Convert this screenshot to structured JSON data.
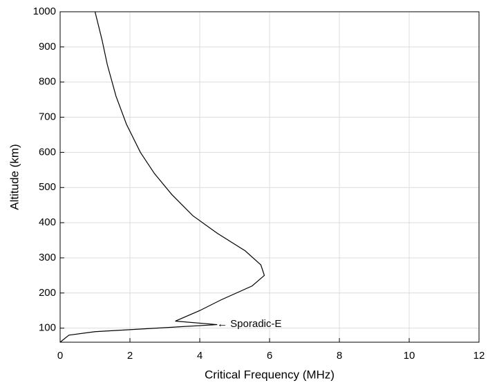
{
  "chart_data": {
    "type": "line",
    "xlabel": "Critical Frequency (MHz)",
    "ylabel": "Altitude (km)",
    "x": [
      0,
      0.25,
      1.0,
      4.5,
      3.3,
      4.0,
      4.6,
      5.5,
      5.85,
      5.75,
      5.3,
      4.5,
      3.8,
      3.2,
      2.7,
      2.3,
      1.9,
      1.6,
      1.35,
      1.2,
      1.0
    ],
    "values": [
      60,
      80,
      90,
      110,
      120,
      150,
      180,
      220,
      250,
      280,
      320,
      370,
      420,
      480,
      540,
      600,
      680,
      760,
      850,
      920,
      1000
    ],
    "color": "#000000",
    "annotation": "← Sporadic-E",
    "xlim": [
      0,
      12
    ],
    "xticks": [
      0,
      2,
      4,
      6,
      8,
      10,
      12
    ],
    "ylim": [
      60,
      1000
    ],
    "yticks": [
      100,
      200,
      300,
      400,
      500,
      600,
      700,
      800,
      900,
      1000
    ],
    "grid": true
  }
}
